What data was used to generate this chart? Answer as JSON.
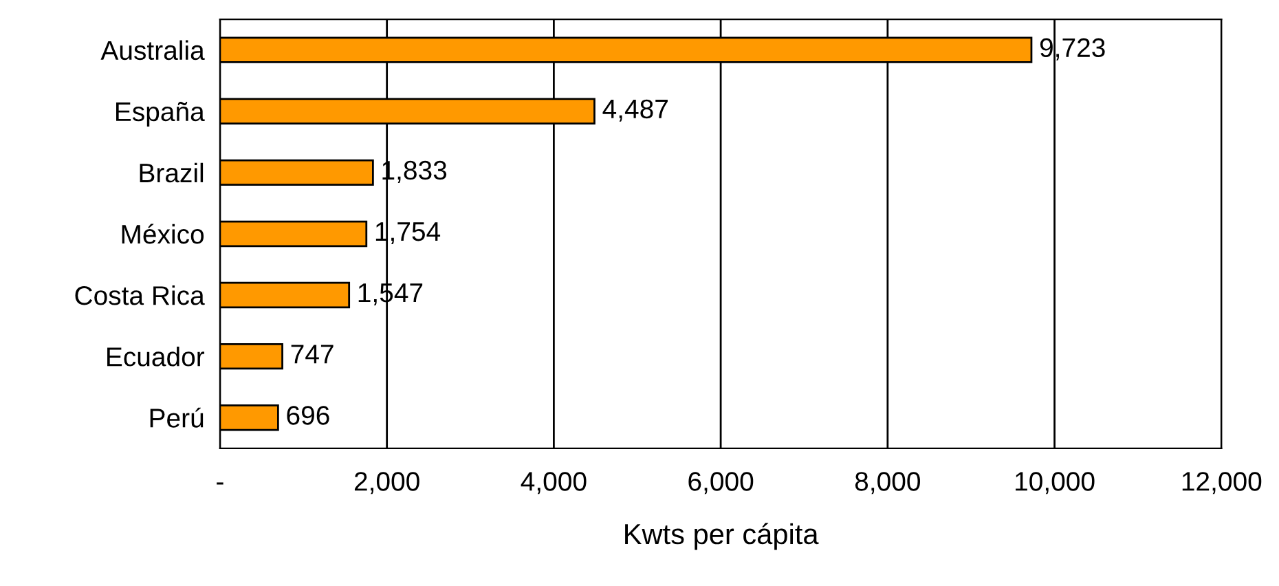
{
  "chart_data": {
    "type": "bar",
    "orientation": "horizontal",
    "xlabel": "Kwts per cápita",
    "categories": [
      "Australia",
      "España",
      "Brazil",
      "México",
      "Costa Rica",
      "Ecuador",
      "Perú"
    ],
    "values": [
      9723,
      4487,
      1833,
      1754,
      1547,
      747,
      696
    ],
    "value_labels": [
      "9,723",
      "4,487",
      "1,833",
      "1,754",
      "1,547",
      "747",
      "696"
    ],
    "color": "#ff9900",
    "xlim": [
      0,
      12000
    ],
    "xticks": [
      {
        "value": 0,
        "label": "-"
      },
      {
        "value": 2000,
        "label": "2,000"
      },
      {
        "value": 4000,
        "label": "4,000"
      },
      {
        "value": 6000,
        "label": "6,000"
      },
      {
        "value": 8000,
        "label": "8,000"
      },
      {
        "value": 10000,
        "label": "10,000"
      },
      {
        "value": 12000,
        "label": "12,000"
      }
    ],
    "grid": "x",
    "legend": false
  }
}
